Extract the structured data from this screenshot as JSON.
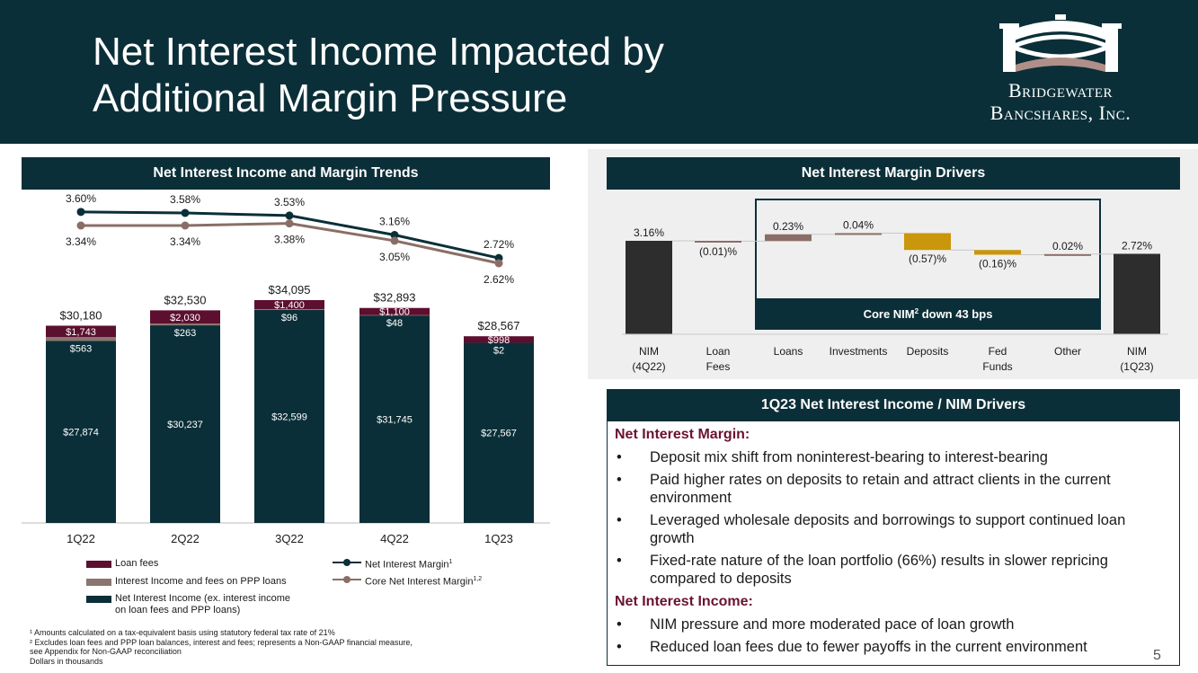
{
  "slide": {
    "title_line1": "Net Interest Income Impacted by",
    "title_line2": "Additional Margin Pressure",
    "logo_line1": "Bridgewater",
    "logo_line2": "Bancshares, Inc.",
    "page_number": "5"
  },
  "colors": {
    "header_bg": "#0b2f38",
    "loan_fees": "#5c0f2e",
    "ppp": "#8a7570",
    "nii": "#0b2f38",
    "nim_line": "#0b2f38",
    "core_nim_line": "#8a6e66",
    "bar_dark": "#2d2d2d",
    "bar_brown": "#8a6e66",
    "bar_gold": "#c9960c",
    "section_head": "#6b1233"
  },
  "left_panel": {
    "title": "Net Interest Income and Margin Trends",
    "legend": {
      "loan_fees": "Loan fees",
      "ppp": "Interest Income and fees on PPP loans",
      "nii_line1": "Net Interest Income (ex. interest income",
      "nii_line2": "on loan fees and PPP loans)",
      "nim": "Net Interest Margin",
      "nim_sup": "1",
      "core_nim": "Core Net Interest Margin",
      "core_nim_sup": "1,2"
    },
    "footnotes": [
      "¹ Amounts calculated on a tax-equivalent basis using statutory federal tax rate of 21%",
      "² Excludes loan fees and PPP loan balances, interest and fees; represents a Non-GAAP financial measure,",
      "see Appendix for Non-GAAP reconciliation",
      "Dollars in thousands"
    ]
  },
  "chart_data": [
    {
      "type": "bar",
      "stacked": true,
      "title": "Net Interest Income and Margin Trends",
      "unit": "Dollars in thousands",
      "categories": [
        "1Q22",
        "2Q22",
        "3Q22",
        "4Q22",
        "1Q23"
      ],
      "series": [
        {
          "name": "Net Interest Income (ex. interest income on loan fees and PPP loans)",
          "values": [
            27874,
            30237,
            32599,
            31745,
            27567
          ],
          "labels": [
            "$27,874",
            "$30,237",
            "$32,599",
            "$31,745",
            "$27,567"
          ]
        },
        {
          "name": "Interest Income and fees on PPP loans",
          "values": [
            563,
            263,
            96,
            48,
            2
          ],
          "labels": [
            "$563",
            "$263",
            "$96",
            "$48",
            "$2"
          ]
        },
        {
          "name": "Loan fees",
          "values": [
            1743,
            2030,
            1400,
            1100,
            998
          ],
          "labels": [
            "$1,743",
            "$2,030",
            "$1,400",
            "$1,100",
            "$998"
          ]
        }
      ],
      "totals": [
        30180,
        32530,
        34095,
        32893,
        28567
      ],
      "total_labels": [
        "$30,180",
        "$32,530",
        "$34,095",
        "$32,893",
        "$28,567"
      ],
      "ylim": [
        0,
        34095
      ]
    },
    {
      "type": "line",
      "categories": [
        "1Q22",
        "2Q22",
        "3Q22",
        "4Q22",
        "1Q23"
      ],
      "series": [
        {
          "name": "Net Interest Margin",
          "values": [
            3.6,
            3.58,
            3.53,
            3.16,
            2.72
          ],
          "labels": [
            "3.60%",
            "3.58%",
            "3.53%",
            "3.16%",
            "2.72%"
          ]
        },
        {
          "name": "Core Net Interest Margin",
          "values": [
            3.34,
            3.34,
            3.38,
            3.05,
            2.62
          ],
          "labels": [
            "3.34%",
            "3.34%",
            "3.38%",
            "3.05%",
            "2.62%"
          ]
        }
      ],
      "ylim": [
        2.5,
        3.7
      ]
    },
    {
      "type": "waterfall",
      "title": "Net Interest Margin Drivers",
      "steps": [
        {
          "name": "NIM (4Q22)",
          "label1": "NIM",
          "label2": "(4Q22)",
          "value": 3.16,
          "display": "3.16%",
          "kind": "total"
        },
        {
          "name": "Loan Fees",
          "label1": "Loan",
          "label2": "Fees",
          "value": -0.01,
          "display": "(0.01)%",
          "kind": "delta"
        },
        {
          "name": "Loans",
          "label1": "Loans",
          "label2": "",
          "value": 0.23,
          "display": "0.23%",
          "kind": "delta"
        },
        {
          "name": "Investments",
          "label1": "Investments",
          "label2": "",
          "value": 0.04,
          "display": "0.04%",
          "kind": "delta"
        },
        {
          "name": "Deposits",
          "label1": "Deposits",
          "label2": "",
          "value": -0.57,
          "display": "(0.57)%",
          "kind": "delta"
        },
        {
          "name": "Fed Funds",
          "label1": "Fed",
          "label2": "Funds",
          "value": -0.16,
          "display": "(0.16)%",
          "kind": "delta"
        },
        {
          "name": "Other",
          "label1": "Other",
          "label2": "",
          "value": 0.02,
          "display": "0.02%",
          "kind": "delta"
        },
        {
          "name": "NIM (1Q23)",
          "label1": "NIM",
          "label2": "(1Q23)",
          "value": 2.72,
          "display": "2.72%",
          "kind": "total"
        }
      ],
      "core_box_label": "Core NIM",
      "core_box_sup": "2",
      "core_box_suffix": " down 43 bps"
    }
  ],
  "nim_drivers": {
    "title": "1Q23 Net Interest Income / NIM Drivers",
    "margin_head": "Net Interest Margin:",
    "margin_bullets": [
      "Deposit mix shift from noninterest-bearing to interest-bearing",
      "Paid higher rates on deposits to retain and attract clients in the current environment",
      "Leveraged wholesale deposits and borrowings to support continued loan growth",
      "Fixed-rate nature of the loan portfolio (66%) results in slower repricing compared to deposits"
    ],
    "income_head": "Net Interest Income:",
    "income_bullets": [
      "NIM pressure and more moderated pace of loan growth",
      "Reduced loan fees due to fewer payoffs in the current environment"
    ]
  }
}
